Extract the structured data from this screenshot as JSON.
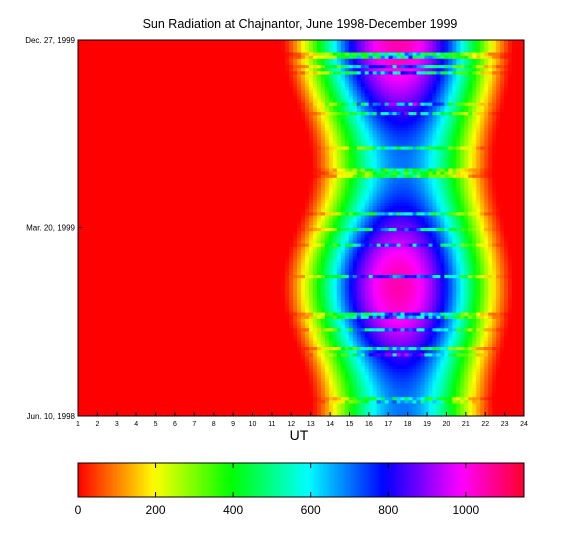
{
  "chart_data": {
    "type": "heatmap",
    "title": "Sun Radiation at Chajnantor, June 1998-December 1999",
    "xlabel": "UT",
    "ylabel": "",
    "x_range": [
      1,
      24
    ],
    "x_ticks": [
      1,
      2,
      3,
      4,
      5,
      6,
      7,
      8,
      9,
      10,
      11,
      12,
      13,
      14,
      15,
      16,
      17,
      18,
      19,
      20,
      21,
      22,
      23,
      24
    ],
    "y_ticks": [
      {
        "label": "Dec. 27, 1999",
        "date": "1999-12-27"
      },
      {
        "label": "Mar. 20, 1999",
        "date": "1999-03-20"
      },
      {
        "label": "Jun. 10, 1998",
        "date": "1998-06-10"
      }
    ],
    "y_range": [
      "1998-06-10",
      "1999-12-27"
    ],
    "colorbar": {
      "min": 0,
      "max": 1150,
      "ticks": [
        0,
        200,
        400,
        600,
        800,
        1000
      ],
      "colormap": "hsv"
    },
    "field": {
      "night_value": 0,
      "summer_peak": 1050,
      "winter_peak": 700,
      "peak_hour": 18,
      "sunrise_hour_summer": 11.5,
      "sunrise_hour_winter": 13,
      "sunset_hour_summer": 23.5,
      "sunset_hour_winter": 22.5
    }
  }
}
